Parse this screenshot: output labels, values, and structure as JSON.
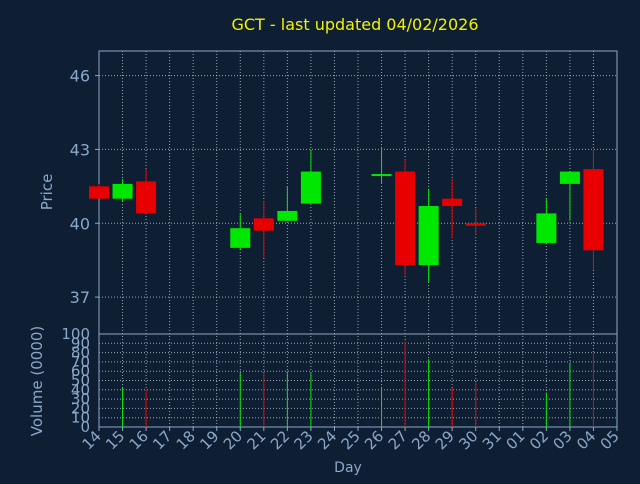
{
  "colors": {
    "background": "#0f1f33",
    "title": "#f2f200",
    "axis_text": "#8aa8c8",
    "frame": "#8aa8c8",
    "grid": "#c8d2dc",
    "up": "#00e800",
    "down": "#e80000"
  },
  "chart_data": [
    {
      "type": "candlestick",
      "title": "GCT - last updated 04/02/2026",
      "ylabel": "Price",
      "xlabel": "",
      "ylim": [
        35.5,
        47.0
      ],
      "yticks": [
        37,
        40,
        43,
        46
      ],
      "grid": true,
      "categories": [
        "14",
        "15",
        "16",
        "17",
        "18",
        "19",
        "20",
        "21",
        "22",
        "23",
        "24",
        "25",
        "26",
        "27",
        "28",
        "29",
        "30",
        "31",
        "01",
        "02",
        "03",
        "04",
        "05"
      ],
      "candles": [
        {
          "x": "14",
          "open": 41.5,
          "high": 41.6,
          "low": 41.0,
          "close": 41.0
        },
        {
          "x": "15",
          "open": 41.0,
          "high": 41.8,
          "low": 40.9,
          "close": 41.6
        },
        {
          "x": "16",
          "open": 41.7,
          "high": 42.2,
          "low": 40.4,
          "close": 40.4
        },
        {
          "x": "20",
          "open": 39.0,
          "high": 40.4,
          "low": 38.9,
          "close": 39.8
        },
        {
          "x": "21",
          "open": 40.2,
          "high": 40.9,
          "low": 38.6,
          "close": 39.7
        },
        {
          "x": "22",
          "open": 40.1,
          "high": 41.5,
          "low": 40.1,
          "close": 40.5
        },
        {
          "x": "23",
          "open": 40.8,
          "high": 43.0,
          "low": 40.8,
          "close": 42.1
        },
        {
          "x": "26",
          "open": 42.0,
          "high": 43.1,
          "low": 41.6,
          "close": 42.0
        },
        {
          "x": "27",
          "open": 42.1,
          "high": 42.6,
          "low": 37.9,
          "close": 38.3
        },
        {
          "x": "28",
          "open": 38.3,
          "high": 41.4,
          "low": 37.6,
          "close": 40.7
        },
        {
          "x": "29",
          "open": 41.0,
          "high": 41.8,
          "low": 39.4,
          "close": 40.7
        },
        {
          "x": "30",
          "open": 40.0,
          "high": 40.6,
          "low": 39.5,
          "close": 39.9
        },
        {
          "x": "02",
          "open": 39.2,
          "high": 41.0,
          "low": 39.2,
          "close": 40.4
        },
        {
          "x": "03",
          "open": 41.6,
          "high": 42.1,
          "low": 40.1,
          "close": 42.1
        },
        {
          "x": "04",
          "open": 42.2,
          "high": 43.0,
          "low": 38.1,
          "close": 38.9
        }
      ]
    },
    {
      "type": "bar",
      "ylabel": "Volume (0000)",
      "xlabel": "Day",
      "ylim": [
        0,
        100
      ],
      "yticks": [
        0,
        10,
        20,
        30,
        40,
        50,
        60,
        70,
        80,
        90,
        100
      ],
      "grid": true,
      "categories": [
        "14",
        "15",
        "16",
        "17",
        "18",
        "19",
        "20",
        "21",
        "22",
        "23",
        "24",
        "25",
        "26",
        "27",
        "28",
        "29",
        "30",
        "31",
        "01",
        "02",
        "03",
        "04",
        "05"
      ],
      "bars": [
        {
          "x": "15",
          "value": 42,
          "dir": "up"
        },
        {
          "x": "16",
          "value": 40,
          "dir": "down"
        },
        {
          "x": "20",
          "value": 58,
          "dir": "up"
        },
        {
          "x": "21",
          "value": 58,
          "dir": "down"
        },
        {
          "x": "22",
          "value": 60,
          "dir": "up"
        },
        {
          "x": "23",
          "value": 58,
          "dir": "up"
        },
        {
          "x": "26",
          "value": 43,
          "dir": "up"
        },
        {
          "x": "27",
          "value": 92,
          "dir": "down"
        },
        {
          "x": "28",
          "value": 73,
          "dir": "up"
        },
        {
          "x": "29",
          "value": 42,
          "dir": "down"
        },
        {
          "x": "30",
          "value": 48,
          "dir": "down"
        },
        {
          "x": "02",
          "value": 37,
          "dir": "up"
        },
        {
          "x": "03",
          "value": 69,
          "dir": "up"
        },
        {
          "x": "04",
          "value": 80,
          "dir": "down"
        }
      ]
    }
  ]
}
